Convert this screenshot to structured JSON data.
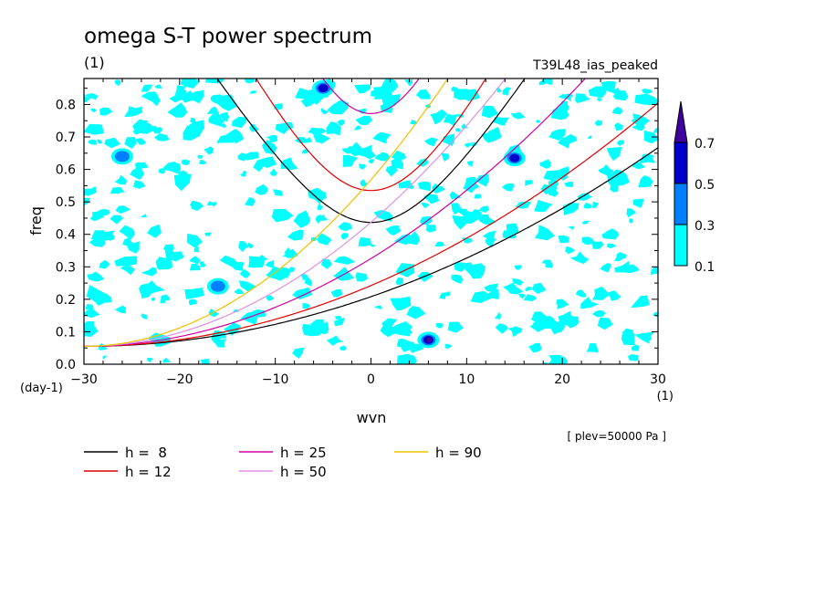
{
  "chart_data": {
    "type": "contour",
    "title": "omega S-T power spectrum",
    "units_left": "(1)",
    "run_label": "T39L48_ias_peaked",
    "xlabel": "wvn",
    "ylabel": "freq",
    "x_units": "(1)",
    "y_units": "(day-1)",
    "level_note": "[ plev=50000 Pa ]",
    "xlim": [
      -30,
      30
    ],
    "ylim": [
      0,
      0.88
    ],
    "xticks": [
      -30,
      -20,
      -10,
      0,
      10,
      20,
      30
    ],
    "yticks": [
      0.0,
      0.1,
      0.2,
      0.3,
      0.4,
      0.5,
      0.6,
      0.7,
      0.8
    ],
    "colorbar": {
      "levels": [
        "0.1",
        "0.3",
        "0.5",
        "0.7"
      ],
      "colors": [
        "#00ffff",
        "#0080ff",
        "#0000c8",
        "#4000a0"
      ]
    },
    "dispersion_curves": [
      {
        "label": "h =  8",
        "h": 8,
        "color": "#000000"
      },
      {
        "label": "h = 12",
        "h": 12,
        "color": "#e00000"
      },
      {
        "label": "h = 25",
        "h": 25,
        "color": "#d000a0"
      },
      {
        "label": "h = 50",
        "h": 50,
        "color": "#e090e0"
      },
      {
        "label": "h = 90",
        "h": 90,
        "color": "#f0c000"
      }
    ],
    "highlight_spots": [
      {
        "wvn": 6,
        "freq": 0.075,
        "level": "0.7"
      },
      {
        "wvn": 15,
        "freq": 0.635,
        "level": "0.5"
      },
      {
        "wvn": -16,
        "freq": 0.24,
        "level": "0.3"
      },
      {
        "wvn": -5,
        "freq": 0.85,
        "level": "0.5"
      },
      {
        "wvn": -26,
        "freq": 0.64,
        "level": "0.3"
      }
    ]
  }
}
